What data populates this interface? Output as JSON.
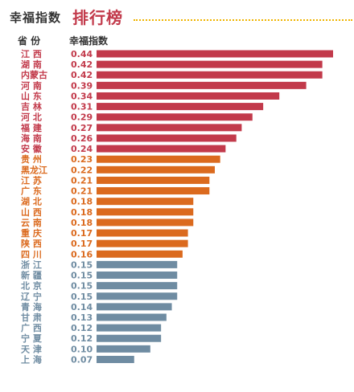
{
  "header": {
    "title_main": "幸福指数",
    "title_accent": "排行榜",
    "col_province": "省  份",
    "col_index": "幸福指数"
  },
  "colors": {
    "tier1": "#c23a4b",
    "tier2": "#db6a1e",
    "tier3": "#6f8ca2",
    "accent": "#c23a4b",
    "dots": "#f0b400"
  },
  "chart_data": {
    "type": "bar",
    "orientation": "horizontal",
    "title": "幸福指数 排行榜",
    "xlabel": "幸福指数",
    "ylabel": "省 份",
    "xlim": [
      0,
      0.44
    ],
    "categories": [
      "江 西",
      "湖 南",
      "内蒙古",
      "河 南",
      "山 东",
      "吉 林",
      "河 北",
      "福 建",
      "海 南",
      "安 徽",
      "贵 州",
      "黑龙江",
      "江 苏",
      "广 东",
      "湖 北",
      "山 西",
      "云 南",
      "重 庆",
      "陕 西",
      "四 川",
      "浙 江",
      "新 疆",
      "北 京",
      "辽 宁",
      "青 海",
      "甘 肃",
      "广 西",
      "宁 夏",
      "天 津",
      "上 海"
    ],
    "values": [
      0.44,
      0.42,
      0.42,
      0.39,
      0.34,
      0.31,
      0.29,
      0.27,
      0.26,
      0.24,
      0.23,
      0.22,
      0.21,
      0.21,
      0.18,
      0.18,
      0.18,
      0.17,
      0.17,
      0.16,
      0.15,
      0.15,
      0.15,
      0.15,
      0.14,
      0.13,
      0.12,
      0.12,
      0.1,
      0.07
    ],
    "value_labels": [
      "0.44",
      "0.42",
      "0.42",
      "0.39",
      "0.34",
      "0.31",
      "0.29",
      "0.27",
      "0.26",
      "0.24",
      "0.23",
      "0.22",
      "0.21",
      "0.21",
      "0.18",
      "0.18",
      "0.18",
      "0.17",
      "0.17",
      "0.16",
      "0.15",
      "0.15",
      "0.15",
      "0.15",
      "0.14",
      "0.13",
      "0.12",
      "0.12",
      "0.10",
      "0.07"
    ],
    "tiers": [
      1,
      1,
      1,
      1,
      1,
      1,
      1,
      1,
      1,
      1,
      2,
      2,
      2,
      2,
      2,
      2,
      2,
      2,
      2,
      2,
      3,
      3,
      3,
      3,
      3,
      3,
      3,
      3,
      3,
      3
    ],
    "grid": false,
    "legend": "none"
  }
}
